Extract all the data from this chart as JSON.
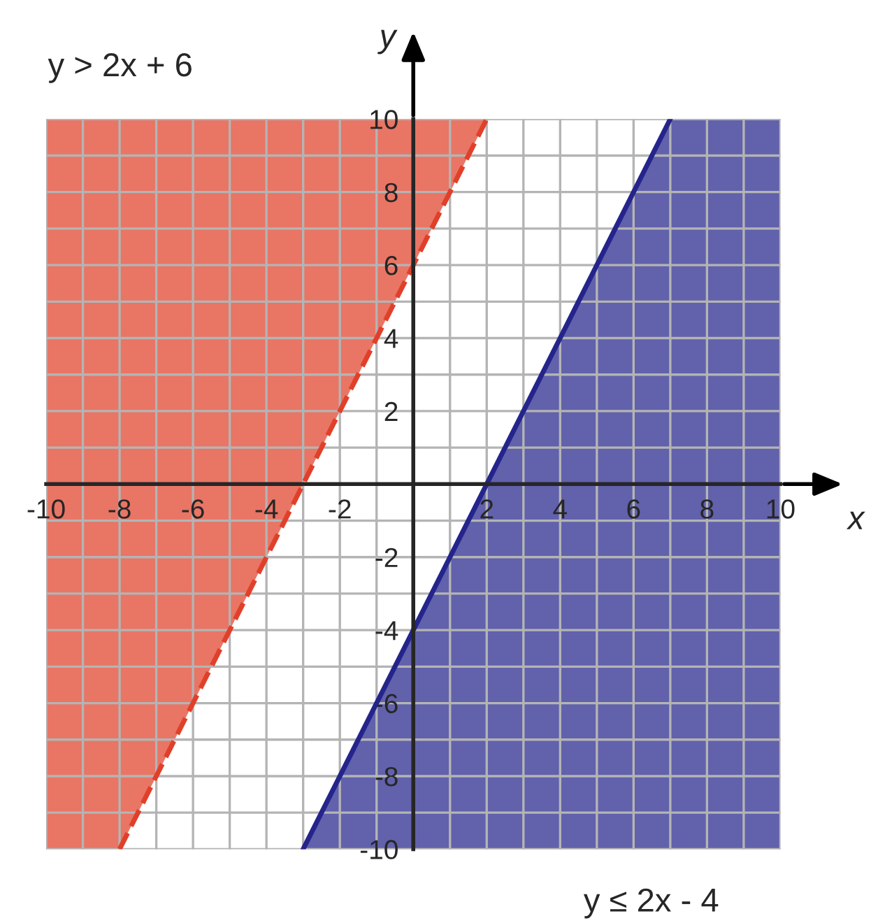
{
  "chart_data": {
    "type": "line",
    "xlabel": "x",
    "ylabel": "y",
    "annotations": [
      "y > 2x + 6",
      "y ≤ 2x - 4"
    ],
    "xlim": [
      -10,
      10
    ],
    "ylim": [
      -10,
      10
    ],
    "xticks": [
      -10,
      {
        "value": -9,
        "label": null
      },
      -8,
      {
        "value": -7,
        "label": null
      },
      -6,
      {
        "value": -5,
        "label": null
      },
      -4,
      {
        "value": -3,
        "label": null
      },
      -2,
      {
        "value": -1,
        "label": null
      },
      {
        "value": 0,
        "label": null
      },
      {
        "value": 1,
        "label": null
      },
      2,
      {
        "value": 3,
        "label": null
      },
      4,
      {
        "value": 5,
        "label": null
      },
      6,
      {
        "value": 7,
        "label": null
      },
      8,
      {
        "value": 9,
        "label": null
      },
      10
    ],
    "yticks": [
      -10,
      {
        "value": -9,
        "label": null
      },
      -8,
      {
        "value": -7,
        "label": null
      },
      -6,
      {
        "value": -5,
        "label": null
      },
      -4,
      {
        "value": -3,
        "label": null
      },
      -2,
      {
        "value": -1,
        "label": null
      },
      {
        "value": 0,
        "label": null
      },
      {
        "value": 1,
        "label": null
      },
      2,
      {
        "value": 3,
        "label": null
      },
      4,
      {
        "value": 5,
        "label": null
      },
      6,
      {
        "value": 7,
        "label": null
      },
      8,
      {
        "value": 9,
        "label": null
      },
      10
    ],
    "grid": true,
    "legend": false,
    "series": [
      {
        "color": "#e0402a",
        "line_style": "dashed",
        "x": [
          -10,
          -8,
          2
        ],
        "values": [
          null,
          -10,
          10
        ],
        "lower": [
          -10,
          -10,
          10
        ],
        "upper": [
          10,
          10,
          10
        ]
      },
      {
        "color": "#24248c",
        "line_style": "solid",
        "x": [
          -3,
          7,
          10
        ],
        "values": [
          -10,
          10,
          null
        ],
        "lower": [
          -10,
          -10,
          -10
        ],
        "upper": [
          -10,
          10,
          10
        ]
      }
    ]
  }
}
